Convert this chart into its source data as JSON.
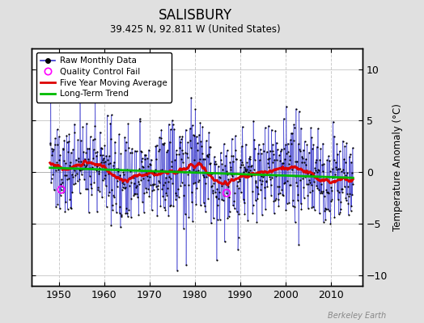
{
  "title": "SALISBURY",
  "subtitle": "39.425 N, 92.811 W (United States)",
  "ylabel": "Temperature Anomaly (°C)",
  "credit": "Berkeley Earth",
  "xlim": [
    1944,
    2017
  ],
  "ylim": [
    -11,
    12
  ],
  "yticks": [
    -10,
    -5,
    0,
    5,
    10
  ],
  "xticks": [
    1950,
    1960,
    1970,
    1980,
    1990,
    2000,
    2010
  ],
  "bg_color": "#e0e0e0",
  "plot_bg_color": "#ffffff",
  "line_color": "#3333cc",
  "moving_avg_color": "#dd0000",
  "trend_color": "#00bb00",
  "qc_color": "#ff00ff",
  "seed": 137,
  "n_months": 804,
  "start_year": 1948.0
}
